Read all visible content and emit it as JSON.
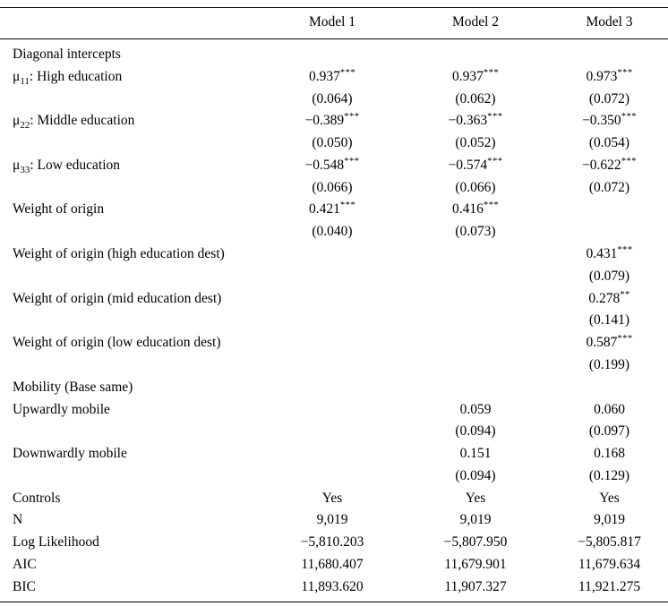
{
  "table": {
    "header": {
      "corner": "",
      "columns": [
        "Model 1",
        "Model 2",
        "Model 3"
      ]
    },
    "rows": [
      {
        "name": "diagonal-intercepts-section",
        "label": [
          {
            "t": "Diagonal intercepts"
          }
        ],
        "cells": [
          null,
          null,
          null
        ]
      },
      {
        "name": "mu11-high-education",
        "label": [
          {
            "t": "μ"
          },
          {
            "t": "11",
            "sub": true
          },
          {
            "t": ": High education"
          }
        ],
        "cells": [
          {
            "v": "0.937",
            "sup": "***"
          },
          {
            "v": "0.937",
            "sup": "***"
          },
          {
            "v": "0.973",
            "sup": "***"
          }
        ]
      },
      {
        "name": "mu11-se",
        "label": [],
        "cells": [
          {
            "v": "(0.064)"
          },
          {
            "v": "(0.062)"
          },
          {
            "v": "(0.072)"
          }
        ]
      },
      {
        "name": "mu22-middle-education",
        "label": [
          {
            "t": "μ"
          },
          {
            "t": "22",
            "sub": true
          },
          {
            "t": ": Middle education"
          }
        ],
        "cells": [
          {
            "v": "−0.389",
            "sup": "***"
          },
          {
            "v": "−0.363",
            "sup": "***"
          },
          {
            "v": "−0.350",
            "sup": "***"
          }
        ]
      },
      {
        "name": "mu22-se",
        "label": [],
        "cells": [
          {
            "v": "(0.050)"
          },
          {
            "v": "(0.052)"
          },
          {
            "v": "(0.054)"
          }
        ]
      },
      {
        "name": "mu33-low-education",
        "label": [
          {
            "t": "μ"
          },
          {
            "t": "33",
            "sub": true
          },
          {
            "t": ": Low education"
          }
        ],
        "cells": [
          {
            "v": "−0.548",
            "sup": "***"
          },
          {
            "v": "−0.574",
            "sup": "***"
          },
          {
            "v": "−0.622",
            "sup": "***"
          }
        ]
      },
      {
        "name": "mu33-se",
        "label": [],
        "cells": [
          {
            "v": "(0.066)"
          },
          {
            "v": "(0.066)"
          },
          {
            "v": "(0.072)"
          }
        ]
      },
      {
        "name": "weight-of-origin",
        "label": [
          {
            "t": "Weight of origin"
          }
        ],
        "cells": [
          {
            "v": "0.421",
            "sup": "***"
          },
          {
            "v": "0.416",
            "sup": "***"
          },
          null
        ]
      },
      {
        "name": "weight-of-origin-se",
        "label": [],
        "cells": [
          {
            "v": "(0.040)"
          },
          {
            "v": "(0.073)"
          },
          null
        ]
      },
      {
        "name": "weight-origin-high-dest",
        "label": [
          {
            "t": "Weight of origin (high education dest)"
          }
        ],
        "cells": [
          null,
          null,
          {
            "v": "0.431",
            "sup": "***"
          }
        ]
      },
      {
        "name": "weight-origin-high-dest-se",
        "label": [],
        "cells": [
          null,
          null,
          {
            "v": "(0.079)"
          }
        ]
      },
      {
        "name": "weight-origin-mid-dest",
        "label": [
          {
            "t": "Weight of origin (mid education dest)"
          }
        ],
        "cells": [
          null,
          null,
          {
            "v": "0.278",
            "sup": "**"
          }
        ]
      },
      {
        "name": "weight-origin-mid-dest-se",
        "label": [],
        "cells": [
          null,
          null,
          {
            "v": "(0.141)"
          }
        ]
      },
      {
        "name": "weight-origin-low-dest",
        "label": [
          {
            "t": "Weight of origin (low education dest)"
          }
        ],
        "cells": [
          null,
          null,
          {
            "v": "0.587",
            "sup": "***"
          }
        ]
      },
      {
        "name": "weight-origin-low-dest-se",
        "label": [],
        "cells": [
          null,
          null,
          {
            "v": "(0.199)"
          }
        ]
      },
      {
        "name": "mobility-section",
        "label": [
          {
            "t": "Mobility (Base same)"
          }
        ],
        "cells": [
          null,
          null,
          null
        ]
      },
      {
        "name": "upwardly-mobile",
        "label": [
          {
            "t": "Upwardly mobile"
          }
        ],
        "cells": [
          null,
          {
            "v": "0.059"
          },
          {
            "v": "0.060"
          }
        ]
      },
      {
        "name": "upwardly-mobile-se",
        "label": [],
        "cells": [
          null,
          {
            "v": "(0.094)"
          },
          {
            "v": "(0.097)"
          }
        ]
      },
      {
        "name": "downwardly-mobile",
        "label": [
          {
            "t": "Downwardly mobile"
          }
        ],
        "cells": [
          null,
          {
            "v": "0.151"
          },
          {
            "v": "0.168"
          }
        ]
      },
      {
        "name": "downwardly-mobile-se",
        "label": [],
        "cells": [
          null,
          {
            "v": "(0.094)"
          },
          {
            "v": "(0.129)"
          }
        ]
      },
      {
        "name": "controls",
        "label": [
          {
            "t": "Controls"
          }
        ],
        "cells": [
          {
            "v": "Yes"
          },
          {
            "v": "Yes"
          },
          {
            "v": "Yes"
          }
        ]
      },
      {
        "name": "n",
        "label": [
          {
            "t": "N"
          }
        ],
        "cells": [
          {
            "v": "9,019"
          },
          {
            "v": "9,019"
          },
          {
            "v": "9,019"
          }
        ]
      },
      {
        "name": "log-likelihood",
        "label": [
          {
            "t": "Log Likelihood"
          }
        ],
        "cells": [
          {
            "v": "−5,810.203"
          },
          {
            "v": "−5,807.950"
          },
          {
            "v": "−5,805.817"
          }
        ]
      },
      {
        "name": "aic",
        "label": [
          {
            "t": "AIC"
          }
        ],
        "cells": [
          {
            "v": "11,680.407"
          },
          {
            "v": "11,679.901"
          },
          {
            "v": "11,679.634"
          }
        ]
      },
      {
        "name": "bic",
        "label": [
          {
            "t": "BIC"
          }
        ],
        "cells": [
          {
            "v": "11,893.620"
          },
          {
            "v": "11,907.327"
          },
          {
            "v": "11,921.275"
          }
        ]
      }
    ]
  }
}
